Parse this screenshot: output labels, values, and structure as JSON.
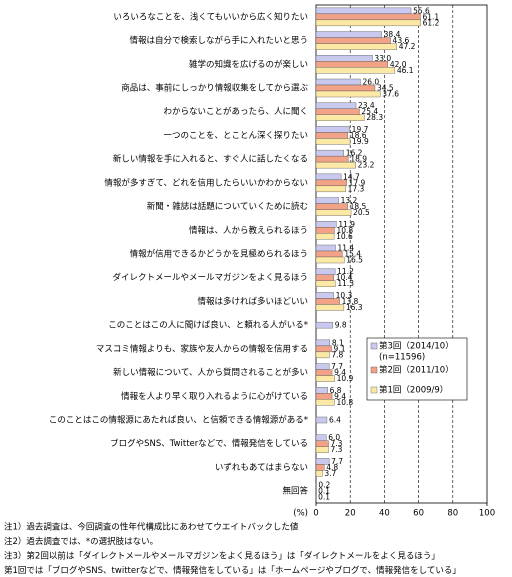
{
  "chart_data": {
    "type": "bar",
    "orientation": "horizontal",
    "categories": [
      "いろいろなことを、浅くてもいいから広く知りたい",
      "情報は自分で検索しながら手に入れたいと思う",
      "雑学の知識を広げるのが楽しい",
      "商品は、事前にしっかり情報収集をしてから選ぶ",
      "わからないことがあったら、人に聞く",
      "一つのことを、とことん深く探りたい",
      "新しい情報を手に入れると、すぐ人に話したくなる",
      "情報が多すぎて、どれを信用したらいいかわからない",
      "新聞・雑誌は話題についていくために読む",
      "情報は、人から教えられるほう",
      "情報が信用できるかどうかを見極められるほう",
      "ダイレクトメールやメールマガジンをよく見るほう",
      "情報は多ければ多いほどいい",
      "このことはこの人に聞けば良い、と頼れる人がいる*",
      "マスコミ情報よりも、家族や友人からの情報を信用する",
      "新しい情報について、人から質問されることが多い",
      "情報を人より早く取り入れるように心がけている",
      "このことはこの情報源にあたれば良い、と信頼できる情報源がある*",
      "ブログやSNS、Twitterなどで、情報発信をしている",
      "いずれもあてはまらない",
      "無回答"
    ],
    "series": [
      {
        "name": "第3回（2014/10）",
        "color": "#c9c9ef",
        "values": [
          55.6,
          38.4,
          33.0,
          26.0,
          23.4,
          19.7,
          16.2,
          14.7,
          13.2,
          11.9,
          11.4,
          11.2,
          10.3,
          9.8,
          8.1,
          7.7,
          6.8,
          6.4,
          6.0,
          7.7,
          0.2
        ],
        "value_labels": [
          "55.6",
          "38.4",
          "33.0",
          "26.0",
          "23.4",
          "19.7",
          "16.2",
          "14.7",
          "13.2",
          "11.9",
          "11.4",
          "11.2",
          "10.3",
          "9.8",
          "8.1",
          "7.7",
          "6.8",
          "6.4",
          "6.0",
          "7.7",
          "0.2"
        ]
      },
      {
        "name": "第2回（2011/10）",
        "color": "#f2a286",
        "values": [
          61.1,
          43.6,
          42.0,
          34.5,
          25.4,
          18.6,
          18.9,
          17.9,
          18.5,
          10.8,
          15.4,
          10.4,
          13.8,
          null,
          9.1,
          9.4,
          9.4,
          null,
          7.3,
          4.8,
          0.1
        ],
        "value_labels": [
          "61.1",
          "43.6",
          "42.0",
          "34.5",
          "25.4",
          "18.6",
          "18.9",
          "17.9",
          "18.5",
          "10.8",
          "15.4",
          "10.4",
          "13.8",
          null,
          "9.1",
          "9.4",
          "9.4",
          null,
          "7.3",
          "4.8",
          "0.1"
        ]
      },
      {
        "name": "第1回（2009/9）",
        "color": "#fde9a6",
        "values": [
          61.2,
          47.2,
          46.1,
          37.6,
          28.3,
          19.9,
          23.2,
          17.3,
          20.5,
          10.6,
          16.5,
          11.3,
          16.3,
          null,
          7.8,
          10.9,
          10.8,
          null,
          7.3,
          3.7,
          0.1
        ],
        "value_labels": [
          "61.2",
          "47.2",
          "46.1",
          "37.6",
          "28.3",
          "19.9",
          "23.2",
          "17.3",
          "20.5",
          "10.6",
          "16.5",
          "11.3",
          "16.3",
          null,
          "7.8",
          "10.9",
          "10.8",
          null,
          "7.3",
          "3.7",
          "0.1"
        ]
      }
    ],
    "xlim": [
      0,
      100
    ],
    "xticks": [
      0,
      20,
      40,
      60,
      80,
      100
    ],
    "x_label": "(%)",
    "grid": true,
    "legend_position": "lower right",
    "legend_note": "(n=11596)",
    "notes": [
      "注1）過去調査は、今回調査の性年代構成比にあわせてウエイトバックした値",
      "注2）過去調査では、*の選択肢はない。",
      "注3）第2回以前は「ダイレクトメールやメールマガジンをよく見るほう」は「ダイレクトメールをよく見るほう」",
      "第1回では「ブログやSNS、twitterなどで、情報発信をしている」は「ホームページやブログで、情報発信をしている」"
    ]
  }
}
